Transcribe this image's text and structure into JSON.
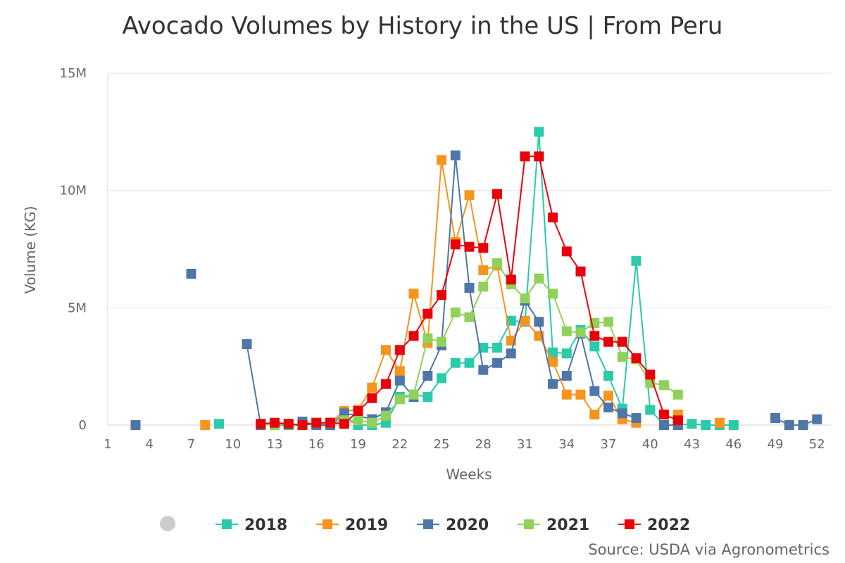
{
  "chart_data": {
    "type": "line",
    "title": "Avocado Volumes by History in the US | From Peru",
    "xlabel": "Weeks",
    "ylabel": "Volume (KG)",
    "xlim": [
      1,
      53
    ],
    "ylim": [
      0,
      15000000
    ],
    "x_ticks": [
      1,
      4,
      7,
      10,
      13,
      16,
      19,
      22,
      25,
      28,
      31,
      34,
      37,
      40,
      43,
      46,
      49,
      52
    ],
    "y_ticks": [
      {
        "value": 0,
        "label": "0"
      },
      {
        "value": 5000000,
        "label": "5M"
      },
      {
        "value": 10000000,
        "label": "10M"
      },
      {
        "value": 15000000,
        "label": "15M"
      }
    ],
    "grid": true,
    "legend_position": "bottom",
    "credit": "Source: USDA via Agronometrics",
    "series": [
      {
        "name": "2018",
        "color": "#2bcaaa",
        "segments": [
          [
            [
              9,
              50000
            ]
          ],
          [
            [
              13,
              0
            ],
            [
              14,
              0
            ],
            [
              15,
              0
            ],
            [
              16,
              50000
            ],
            [
              17,
              0
            ],
            [
              18,
              300000
            ],
            [
              19,
              0
            ],
            [
              20,
              0
            ],
            [
              21,
              100000
            ],
            [
              22,
              1200000
            ],
            [
              23,
              1300000
            ],
            [
              24,
              1200000
            ],
            [
              25,
              2000000
            ],
            [
              26,
              2650000
            ],
            [
              27,
              2650000
            ],
            [
              28,
              3300000
            ],
            [
              29,
              3300000
            ],
            [
              30,
              4450000
            ],
            [
              31,
              4400000
            ],
            [
              32,
              12500000
            ],
            [
              33,
              3100000
            ],
            [
              34,
              3050000
            ],
            [
              35,
              4050000
            ],
            [
              36,
              3350000
            ],
            [
              37,
              2100000
            ],
            [
              38,
              700000
            ],
            [
              39,
              7000000
            ],
            [
              40,
              650000
            ],
            [
              41,
              0
            ],
            [
              42,
              0
            ],
            [
              43,
              50000
            ],
            [
              44,
              0
            ],
            [
              45,
              0
            ],
            [
              46,
              0
            ]
          ]
        ]
      },
      {
        "name": "2019",
        "color": "#f7941d",
        "segments": [
          [
            [
              8,
              0
            ]
          ],
          [
            [
              16,
              100000
            ],
            [
              17,
              100000
            ],
            [
              18,
              600000
            ],
            [
              19,
              650000
            ],
            [
              20,
              1600000
            ],
            [
              21,
              3200000
            ],
            [
              22,
              2300000
            ],
            [
              23,
              5600000
            ],
            [
              24,
              3500000
            ],
            [
              25,
              11300000
            ],
            [
              26,
              7800000
            ],
            [
              27,
              9800000
            ],
            [
              28,
              6600000
            ],
            [
              29,
              6800000
            ],
            [
              30,
              3600000
            ],
            [
              31,
              4450000
            ],
            [
              32,
              3800000
            ],
            [
              33,
              2700000
            ],
            [
              34,
              1300000
            ],
            [
              35,
              1300000
            ],
            [
              36,
              450000
            ],
            [
              37,
              1250000
            ],
            [
              38,
              250000
            ],
            [
              39,
              100000
            ]
          ],
          [
            [
              42,
              450000
            ]
          ],
          [
            [
              45,
              100000
            ]
          ]
        ]
      },
      {
        "name": "2020",
        "color": "#4f76a8",
        "segments": [
          [
            [
              3,
              0
            ]
          ],
          [
            [
              7,
              6450000
            ]
          ],
          [
            [
              11,
              3450000
            ],
            [
              12,
              0
            ]
          ],
          [
            [
              15,
              150000
            ],
            [
              16,
              0
            ],
            [
              17,
              0
            ],
            [
              18,
              500000
            ],
            [
              19,
              400000
            ],
            [
              20,
              250000
            ],
            [
              21,
              550000
            ],
            [
              22,
              1900000
            ],
            [
              23,
              1200000
            ],
            [
              24,
              2100000
            ],
            [
              25,
              3400000
            ],
            [
              26,
              11500000
            ],
            [
              27,
              5850000
            ],
            [
              28,
              2350000
            ],
            [
              29,
              2650000
            ],
            [
              30,
              3050000
            ],
            [
              31,
              5300000
            ],
            [
              32,
              4400000
            ],
            [
              33,
              1750000
            ],
            [
              34,
              2100000
            ],
            [
              35,
              3900000
            ],
            [
              36,
              1450000
            ],
            [
              37,
              750000
            ],
            [
              38,
              500000
            ],
            [
              39,
              300000
            ]
          ],
          [
            [
              41,
              0
            ],
            [
              42,
              0
            ]
          ],
          [
            [
              49,
              300000
            ],
            [
              50,
              0
            ],
            [
              51,
              0
            ],
            [
              52,
              250000
            ]
          ]
        ]
      },
      {
        "name": "2021",
        "color": "#8fd15a",
        "segments": [
          [
            [
              12,
              50000
            ],
            [
              13,
              0
            ],
            [
              14,
              50000
            ],
            [
              15,
              0
            ],
            [
              16,
              100000
            ],
            [
              17,
              100000
            ],
            [
              18,
              200000
            ],
            [
              19,
              200000
            ],
            [
              20,
              100000
            ],
            [
              21,
              400000
            ],
            [
              22,
              1100000
            ],
            [
              23,
              1300000
            ],
            [
              24,
              3700000
            ],
            [
              25,
              3550000
            ],
            [
              26,
              4800000
            ],
            [
              27,
              4600000
            ],
            [
              28,
              5900000
            ],
            [
              29,
              6900000
            ],
            [
              30,
              6000000
            ],
            [
              31,
              5400000
            ],
            [
              32,
              6250000
            ],
            [
              33,
              5600000
            ],
            [
              34,
              4000000
            ],
            [
              35,
              3950000
            ],
            [
              36,
              4350000
            ],
            [
              37,
              4400000
            ],
            [
              38,
              2900000
            ],
            [
              39,
              2800000
            ],
            [
              40,
              1800000
            ],
            [
              41,
              1700000
            ],
            [
              42,
              1300000
            ]
          ]
        ]
      },
      {
        "name": "2022",
        "color": "#e8000b",
        "segments": [
          [
            [
              12,
              50000
            ],
            [
              13,
              100000
            ],
            [
              14,
              50000
            ],
            [
              15,
              0
            ],
            [
              16,
              100000
            ],
            [
              17,
              100000
            ],
            [
              18,
              50000
            ],
            [
              19,
              600000
            ],
            [
              20,
              1150000
            ],
            [
              21,
              1750000
            ],
            [
              22,
              3200000
            ],
            [
              23,
              3800000
            ],
            [
              24,
              4750000
            ],
            [
              25,
              5550000
            ],
            [
              26,
              7700000
            ],
            [
              27,
              7600000
            ],
            [
              28,
              7550000
            ],
            [
              29,
              9850000
            ],
            [
              30,
              6200000
            ],
            [
              31,
              11450000
            ],
            [
              32,
              11450000
            ],
            [
              33,
              8850000
            ],
            [
              34,
              7400000
            ],
            [
              35,
              6550000
            ],
            [
              36,
              3800000
            ],
            [
              37,
              3550000
            ],
            [
              38,
              3550000
            ],
            [
              39,
              2850000
            ],
            [
              40,
              2150000
            ],
            [
              41,
              450000
            ],
            [
              42,
              200000
            ]
          ]
        ]
      }
    ]
  }
}
